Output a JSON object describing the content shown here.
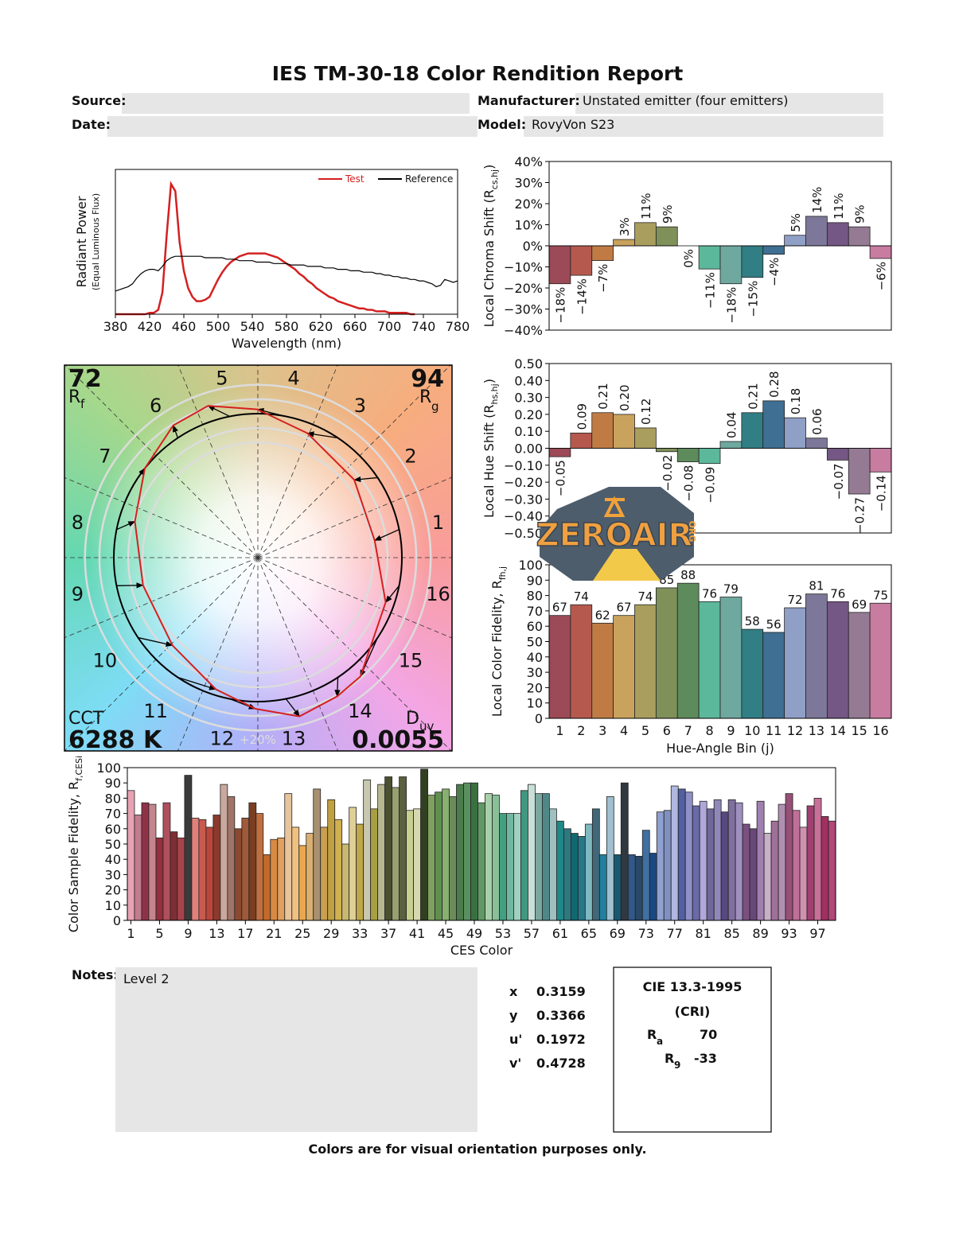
{
  "header": {
    "title": "IES TM-30-18 Color Rendition Report",
    "source_label": "Source:",
    "date_label": "Date:",
    "manufacturer_label": "Manufacturer:",
    "manufacturer": "Unstated emitter (four emitters)",
    "model_label": "Model:",
    "model": "RovyVon S23"
  },
  "chart_data": [
    {
      "type": "line",
      "xlabel": "Wavelength (nm)",
      "ylabel": "Radiant Power",
      "ylabel_note": "(Equal Luminous Flux)",
      "legend": "upper right",
      "xlim": [
        380,
        780
      ],
      "xticks": [
        380,
        420,
        460,
        500,
        540,
        580,
        620,
        660,
        700,
        740,
        780
      ],
      "ylim": [
        0,
        1
      ],
      "x": [
        380,
        385,
        390,
        395,
        400,
        405,
        410,
        415,
        420,
        425,
        430,
        435,
        440,
        445,
        450,
        455,
        460,
        465,
        470,
        475,
        480,
        485,
        490,
        495,
        500,
        505,
        510,
        515,
        520,
        525,
        530,
        535,
        540,
        545,
        550,
        555,
        560,
        565,
        570,
        575,
        580,
        585,
        590,
        595,
        600,
        605,
        610,
        615,
        620,
        625,
        630,
        635,
        640,
        645,
        650,
        655,
        660,
        665,
        670,
        675,
        680,
        685,
        690,
        695,
        700,
        705,
        710,
        715,
        720,
        725,
        730,
        735,
        740,
        745,
        750,
        755,
        760,
        765,
        770,
        775,
        780
      ],
      "series": [
        {
          "name": "Test",
          "color": "#d42020",
          "values": [
            0,
            0,
            0,
            0,
            0,
            0,
            0,
            0,
            0.01,
            0.01,
            0.03,
            0.15,
            0.55,
            0.9,
            0.85,
            0.5,
            0.3,
            0.18,
            0.12,
            0.09,
            0.09,
            0.1,
            0.12,
            0.18,
            0.24,
            0.29,
            0.33,
            0.36,
            0.38,
            0.4,
            0.41,
            0.42,
            0.42,
            0.42,
            0.42,
            0.42,
            0.41,
            0.4,
            0.39,
            0.37,
            0.35,
            0.33,
            0.31,
            0.28,
            0.26,
            0.23,
            0.21,
            0.18,
            0.16,
            0.14,
            0.12,
            0.11,
            0.09,
            0.08,
            0.07,
            0.06,
            0.05,
            0.04,
            0.04,
            0.03,
            0.03,
            0.02,
            0.02,
            0.02,
            0.01,
            0.01,
            0.01,
            0.01,
            0.01,
            0,
            0,
            null,
            null,
            null,
            null,
            null,
            null,
            null,
            null,
            null,
            null
          ]
        },
        {
          "name": "Reference",
          "color": "#000000",
          "values": [
            0.16,
            0.17,
            0.18,
            0.19,
            0.21,
            0.25,
            0.28,
            0.3,
            0.31,
            0.31,
            0.3,
            0.33,
            0.37,
            0.39,
            0.4,
            0.4,
            0.4,
            0.4,
            0.4,
            0.4,
            0.4,
            0.39,
            0.39,
            0.39,
            0.39,
            0.39,
            0.38,
            0.38,
            0.38,
            0.37,
            0.37,
            0.37,
            0.37,
            0.36,
            0.36,
            0.36,
            0.36,
            0.35,
            0.35,
            0.35,
            0.35,
            0.34,
            0.34,
            0.34,
            0.34,
            0.33,
            0.33,
            0.33,
            0.33,
            0.32,
            0.32,
            0.32,
            0.31,
            0.31,
            0.31,
            0.3,
            0.3,
            0.3,
            0.29,
            0.29,
            0.29,
            0.28,
            0.28,
            0.27,
            0.27,
            0.26,
            0.26,
            0.25,
            0.25,
            0.24,
            0.24,
            0.23,
            0.23,
            0.22,
            0.21,
            0.19,
            0.2,
            0.24,
            0.23,
            0.22,
            0.23
          ]
        }
      ]
    },
    {
      "type": "bar",
      "ylabel": "Local Chroma Shift (R",
      "ylabel_sub": "cs,hj",
      "ylabel_end": ")",
      "values": [
        -18,
        -14,
        -7,
        3,
        11,
        9,
        0,
        -11,
        -18,
        -15,
        -4,
        5,
        14,
        11,
        9,
        -6
      ],
      "value_labels": [
        "−18%",
        "−14%",
        "−7%",
        "3%",
        "11%",
        "9%",
        "0%",
        "−11%",
        "−18%",
        "−15%",
        "−4%",
        "5%",
        "14%",
        "11%",
        "9%",
        "−6%"
      ],
      "colors": [
        "#9c4a57",
        "#b5594e",
        "#c07b45",
        "#c9a35d",
        "#a99e5d",
        "#7f9059",
        "#5e8b5c",
        "#5cb89a",
        "#6ea89e",
        "#317e85",
        "#3f6f93",
        "#8f9fc6",
        "#7d7899",
        "#745784",
        "#957a94",
        "#c77ca0"
      ],
      "ylim": [
        -40,
        40
      ],
      "yticks": [
        {
          "value": -40,
          "label": "−40%"
        },
        {
          "value": -30,
          "label": "−30%"
        },
        {
          "value": -20,
          "label": "−20%"
        },
        {
          "value": -10,
          "label": "−10%"
        },
        {
          "value": 0,
          "label": "0%"
        },
        {
          "value": 10,
          "label": "10%"
        },
        {
          "value": 20,
          "label": "20%"
        },
        {
          "value": 30,
          "label": "30%"
        },
        {
          "value": 40,
          "label": "40%"
        }
      ]
    },
    {
      "type": "bar",
      "ylabel": "Local Hue Shift (R",
      "ylabel_sub": "hs,hj",
      "ylabel_end": ")",
      "values": [
        -0.05,
        0.09,
        0.21,
        0.2,
        0.12,
        -0.02,
        -0.08,
        -0.09,
        0.04,
        0.21,
        0.28,
        0.18,
        0.06,
        -0.07,
        -0.27,
        -0.14
      ],
      "value_labels": [
        "−0.05",
        "0.09",
        "0.21",
        "0.20",
        "0.12",
        "−0.02",
        "−0.08",
        "−0.09",
        "0.04",
        "0.21",
        "0.28",
        "0.18",
        "0.06",
        "−0.07",
        "−0.27",
        "−0.14"
      ],
      "colors": [
        "#9c4a57",
        "#b5594e",
        "#c07b45",
        "#c9a35d",
        "#a99e5d",
        "#7f9059",
        "#5e8b5c",
        "#5cb89a",
        "#6ea89e",
        "#317e85",
        "#3f6f93",
        "#8f9fc6",
        "#7d7899",
        "#745784",
        "#957a94",
        "#c77ca0"
      ],
      "ylim": [
        -0.5,
        0.5
      ],
      "yticks": [
        {
          "value": -0.5,
          "label": "−0.50"
        },
        {
          "value": -0.4,
          "label": "−0.40"
        },
        {
          "value": -0.3,
          "label": "−0.30"
        },
        {
          "value": -0.2,
          "label": "−0.20"
        },
        {
          "value": -0.1,
          "label": "−0.10"
        },
        {
          "value": 0,
          "label": "0.00"
        },
        {
          "value": 0.1,
          "label": "0.10"
        },
        {
          "value": 0.2,
          "label": "0.20"
        },
        {
          "value": 0.3,
          "label": "0.30"
        },
        {
          "value": 0.4,
          "label": "0.40"
        },
        {
          "value": 0.5,
          "label": "0.50"
        }
      ]
    },
    {
      "type": "bar",
      "xlabel": "Hue-Angle Bin (j)",
      "ylabel": "Local Color Fidelity, R",
      "ylabel_sub": "fh,j",
      "categories": [
        1,
        2,
        3,
        4,
        5,
        6,
        7,
        8,
        9,
        10,
        11,
        12,
        13,
        14,
        15,
        16
      ],
      "values": [
        67,
        74,
        62,
        67,
        74,
        85,
        88,
        76,
        79,
        58,
        56,
        72,
        81,
        76,
        69,
        75
      ],
      "colors": [
        "#9c4a57",
        "#b5594e",
        "#c07b45",
        "#c9a35d",
        "#a99e5d",
        "#7f9059",
        "#5e8b5c",
        "#5cb89a",
        "#6ea89e",
        "#317e85",
        "#3f6f93",
        "#8f9fc6",
        "#7d7899",
        "#745784",
        "#957a94",
        "#c77ca0"
      ],
      "ylim": [
        0,
        100
      ],
      "yticks": [
        0,
        10,
        20,
        30,
        40,
        50,
        60,
        70,
        80,
        90,
        100
      ]
    },
    {
      "type": "vector",
      "rf": 72,
      "rf_symbol": "R",
      "rf_sub": "f",
      "rg": 94,
      "rg_symbol": "R",
      "rg_sub": "g",
      "cct_label": "CCT",
      "cct": {
        "value": 6288,
        "label": "6288 K"
      },
      "duv_symbol": "D",
      "duv_sub": "uv",
      "duv": 0.0055,
      "ring_label": "+20%",
      "test_color": "#d42020",
      "reference_color": "#000000"
    },
    {
      "type": "bar",
      "xlabel": "CES Color",
      "ylabel": "Color Sample Fidelity, R",
      "ylabel_sub": "f,CESi",
      "x": [
        1,
        2,
        3,
        4,
        5,
        6,
        7,
        8,
        9,
        10,
        11,
        12,
        13,
        14,
        15,
        16,
        17,
        18,
        19,
        20,
        21,
        22,
        23,
        24,
        25,
        26,
        27,
        28,
        29,
        30,
        31,
        32,
        33,
        34,
        35,
        36,
        37,
        38,
        39,
        40,
        41,
        42,
        43,
        44,
        45,
        46,
        47,
        48,
        49,
        50,
        51,
        52,
        53,
        54,
        55,
        56,
        57,
        58,
        59,
        60,
        61,
        62,
        63,
        64,
        65,
        66,
        67,
        68,
        69,
        70,
        71,
        72,
        73,
        74,
        75,
        76,
        77,
        78,
        79,
        80,
        81,
        82,
        83,
        84,
        85,
        86,
        87,
        88,
        89,
        90,
        91,
        92,
        93,
        94,
        95,
        96,
        97,
        98,
        99
      ],
      "values": [
        85,
        69,
        77,
        76,
        54,
        77,
        58,
        54,
        95,
        67,
        66,
        61,
        69,
        89,
        81,
        60,
        67,
        77,
        70,
        43,
        53,
        54,
        83,
        61,
        49,
        57,
        86,
        61,
        79,
        66,
        50,
        74,
        63,
        92,
        73,
        89,
        94,
        87,
        94,
        72,
        73,
        99,
        82,
        84,
        86,
        81,
        89,
        90,
        90,
        77,
        83,
        82,
        70,
        70,
        70,
        85,
        89,
        83,
        83,
        73,
        65,
        60,
        57,
        55,
        63,
        73,
        43,
        81,
        43,
        90,
        43,
        42,
        59,
        44,
        71,
        72,
        88,
        86,
        84,
        75,
        78,
        73,
        79,
        71,
        79,
        77,
        63,
        60,
        78,
        57,
        65,
        76,
        83,
        72,
        61,
        75,
        80,
        68,
        65
      ],
      "colors": [
        "#e7a3b3",
        "#c27c8c",
        "#8e3347",
        "#c4868e",
        "#92303e",
        "#b0505c",
        "#7c2e34",
        "#a8424a",
        "#3a3a3a",
        "#e0807a",
        "#c85a50",
        "#b9473c",
        "#8c3a2c",
        "#c9a89e",
        "#a07468",
        "#8a4a30",
        "#a05a3a",
        "#7a3e22",
        "#c07040",
        "#c26a2c",
        "#d88a44",
        "#e0a060",
        "#e8c49c",
        "#f0c080",
        "#e8a850",
        "#d9b070",
        "#a89070",
        "#c8a050",
        "#c0a040",
        "#d0b050",
        "#c8b870",
        "#e0d098",
        "#c0a848",
        "#c8c8b0",
        "#a8a040",
        "#b8b890",
        "#4a5030",
        "#98a070",
        "#5a6040",
        "#c8d090",
        "#d8d8b0",
        "#304020",
        "#80a060",
        "#609050",
        "#88b070",
        "#6a8c5a",
        "#4c7c4c",
        "#5a9060",
        "#3a7040",
        "#609868",
        "#a8d0a8",
        "#88c098",
        "#40a080",
        "#70b8a0",
        "#a0d0c0",
        "#409880",
        "#c8e0d8",
        "#7aa8a0",
        "#508888",
        "#a0c0c0",
        "#208888",
        "#307880",
        "#106870",
        "#287888",
        "#80b8c0",
        "#406878",
        "#2080a0",
        "#a0c0d0",
        "#1a5870",
        "#303840",
        "#305888",
        "#2a4868",
        "#4070a0",
        "#1a4880",
        "#90a0d0",
        "#8090c0",
        "#b0b8e0",
        "#5060a0",
        "#9090c8",
        "#6a6aa8",
        "#b0a8d8",
        "#706898",
        "#9088b8",
        "#584880",
        "#8070a0",
        "#a090c0",
        "#7a5080",
        "#684878",
        "#a080b0",
        "#c8b0c8",
        "#a07098",
        "#b090b0",
        "#985078",
        "#c07098",
        "#d090b0",
        "#a04070",
        "#c87098",
        "#a03060",
        "#b04878"
      ],
      "xlim": [
        0.5,
        99.5
      ],
      "xticks": [
        1,
        5,
        9,
        13,
        17,
        21,
        25,
        29,
        33,
        37,
        41,
        45,
        49,
        53,
        57,
        61,
        65,
        69,
        73,
        77,
        81,
        85,
        89,
        93,
        97
      ],
      "ylim": [
        0,
        100
      ],
      "yticks": [
        0,
        10,
        20,
        30,
        40,
        50,
        60,
        70,
        80,
        90,
        100
      ]
    }
  ],
  "notes": {
    "label": "Notes:",
    "text": "Level 2"
  },
  "chromaticity": [
    {
      "label": "x",
      "value": 0.3159
    },
    {
      "label": "y",
      "value": 0.3366
    },
    {
      "label": "u'",
      "value": 0.1972
    },
    {
      "label": "v'",
      "value": 0.4728
    }
  ],
  "cri": {
    "title": "CIE 13.3-1995",
    "subtitle": "(CRI)",
    "ra_symbol": "R",
    "ra_sub": "a",
    "ra": 70,
    "r9_symbol": "R",
    "r9_sub": "9",
    "r9": -33
  },
  "footer": "Colors are for visual orientation purposes only.",
  "watermark": {
    "text": "ZEROAIR",
    "suffix": "ORG"
  }
}
